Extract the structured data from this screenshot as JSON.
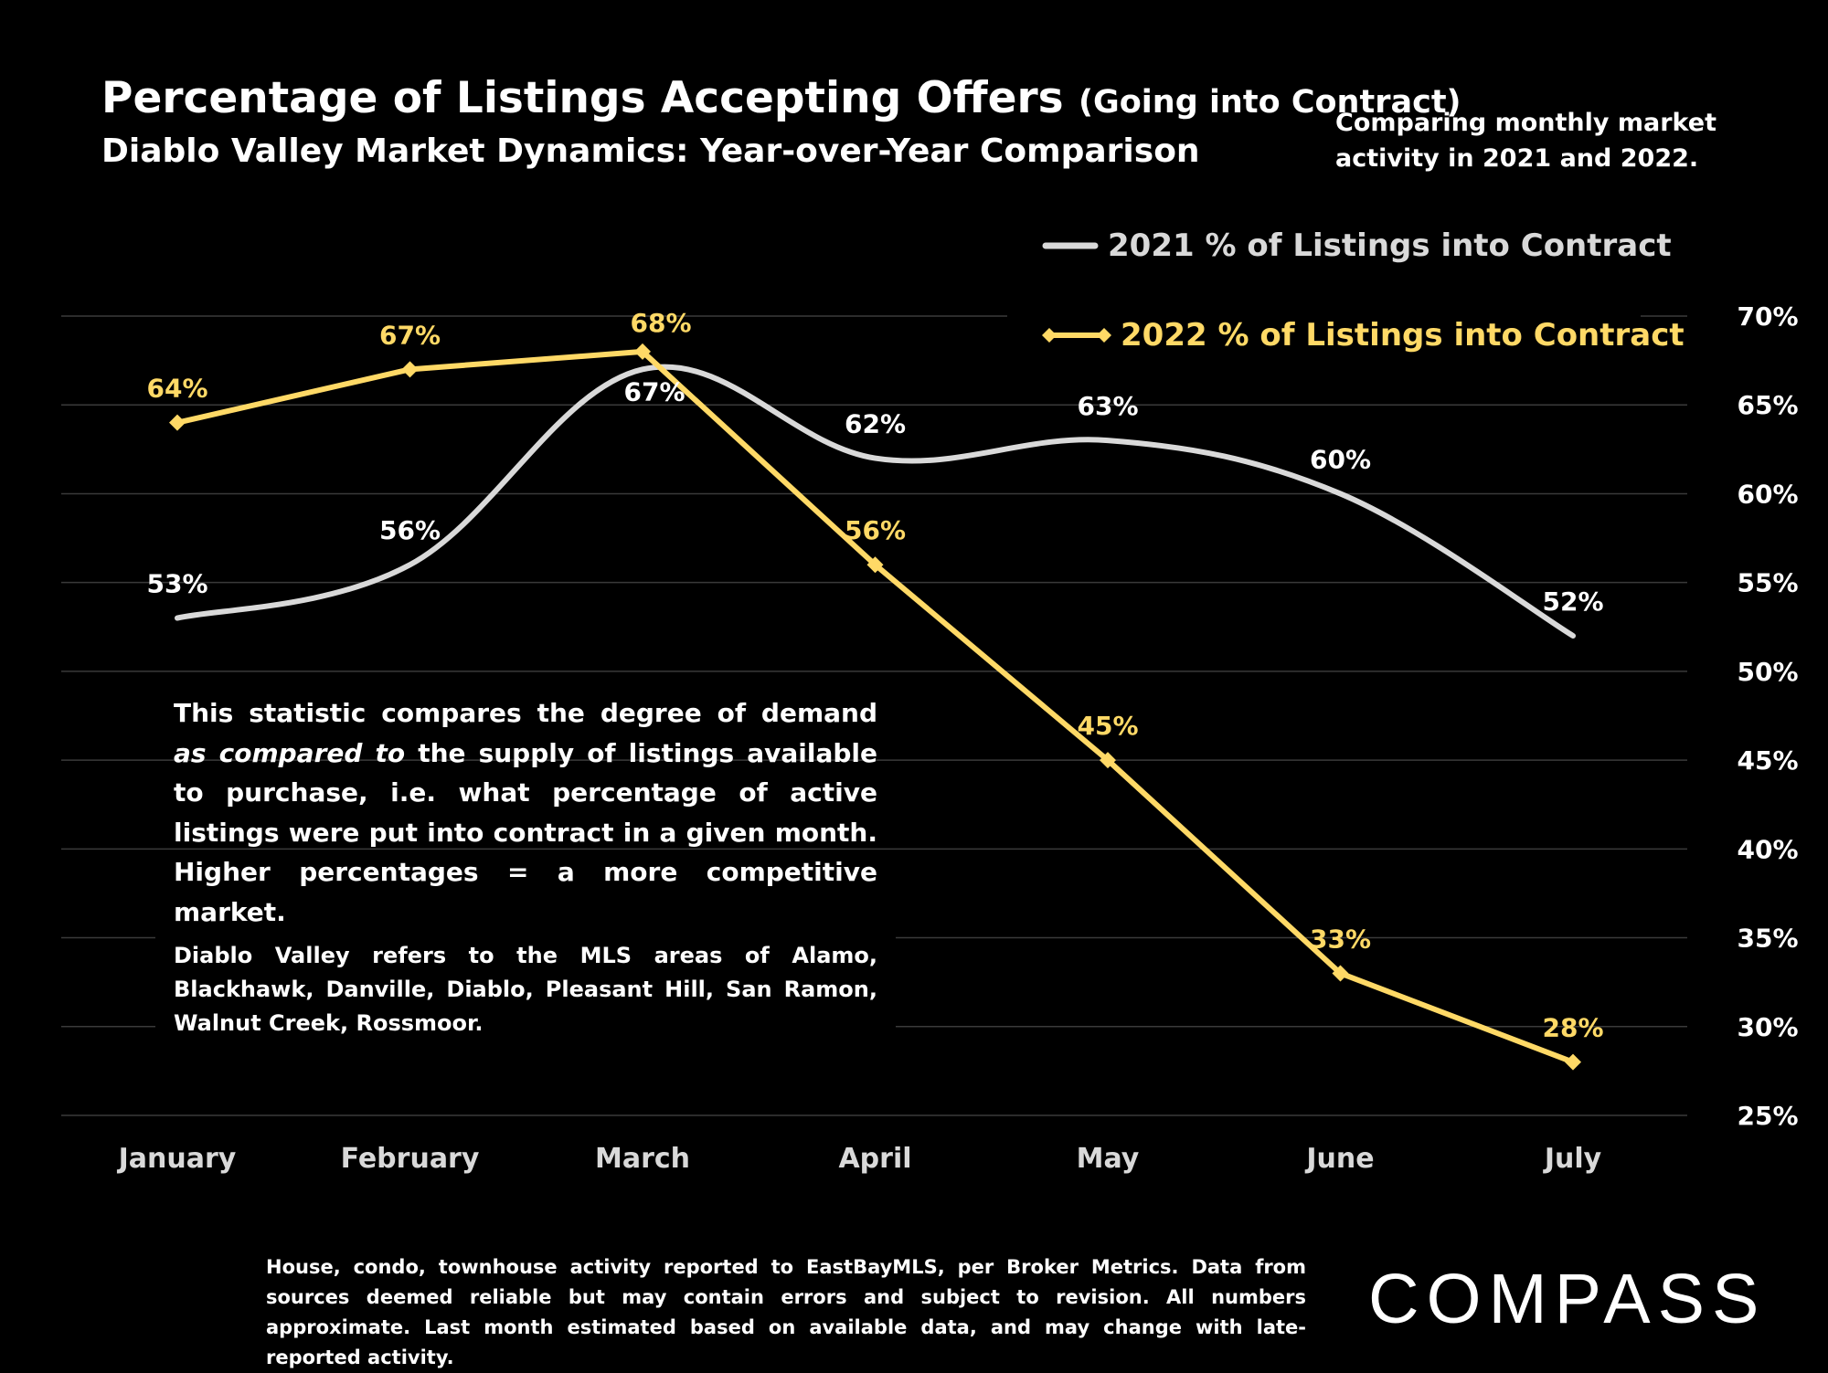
{
  "header": {
    "title": "Percentage of Listings Accepting Offers",
    "title_suffix": "(Going into Contract)",
    "subtitle": "Diablo Valley Market Dynamics: Year-over-Year Comparison",
    "side_note": "Comparing monthly market activity in 2021 and 2022."
  },
  "chart_data": {
    "type": "line",
    "title": "Percentage of Listings Accepting Offers (Going into Contract)",
    "subtitle": "Diablo Valley Market Dynamics: Year-over-Year Comparison",
    "categories": [
      "January",
      "February",
      "March",
      "April",
      "May",
      "June",
      "July"
    ],
    "series": [
      {
        "name": "2021 % of Listings into Contract",
        "values": [
          53,
          56,
          67,
          62,
          63,
          60,
          52
        ],
        "labels": [
          "53%",
          "56%",
          "67%",
          "62%",
          "63%",
          "60%",
          "52%"
        ],
        "color": "#d9d9d9",
        "style": "smooth",
        "marker": "none"
      },
      {
        "name": "2022 % of Listings into Contract",
        "values": [
          64,
          67,
          68,
          56,
          45,
          33,
          28
        ],
        "labels": [
          "64%",
          "67%",
          "68%",
          "56%",
          "45%",
          "33%",
          "28%"
        ],
        "color": "#ffd966",
        "style": "straight",
        "marker": "diamond"
      }
    ],
    "y_ticks": [
      "25%",
      "30%",
      "35%",
      "40%",
      "45%",
      "50%",
      "55%",
      "60%",
      "65%",
      "70%"
    ],
    "ylim": [
      25,
      70
    ],
    "y_axis_side": "right",
    "grid": true,
    "legend_position": "top-right"
  },
  "description": {
    "part1": "This statistic compares the degree of demand ",
    "emphasis": "as compared to",
    "part2": " the supply of listings available to purchase, i.e. what percentage of active listings were put into contract in a given month. Higher percentages = a more competitive market."
  },
  "areas_note": "Diablo Valley refers to the MLS areas of Alamo, Blackhawk, Danville, Diablo, Pleasant Hill, San Ramon, Walnut Creek, Rossmoor.",
  "footnote": "House, condo, townhouse activity reported to EastBayMLS, per Broker Metrics. Data from sources deemed reliable but may contain errors and subject to revision. All numbers approximate. Last month estimated based on available data, and may change with late-reported activity.",
  "brand": {
    "logo_text": "COMPASS"
  }
}
